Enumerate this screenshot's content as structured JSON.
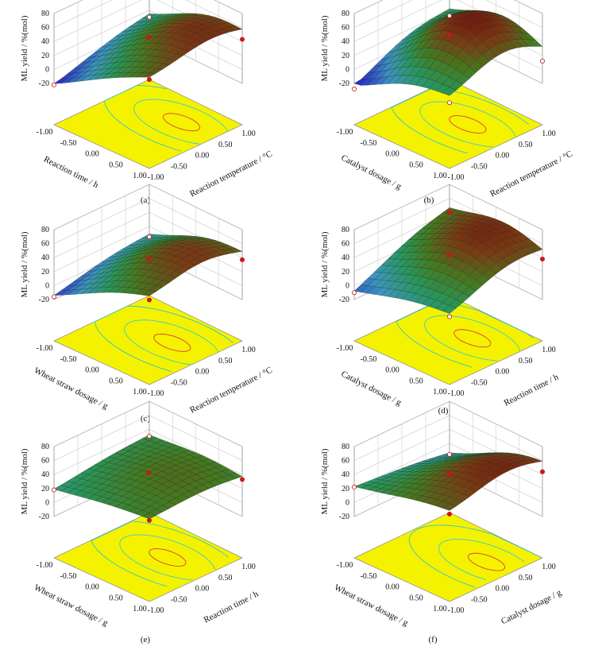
{
  "figure": {
    "panels": [
      {
        "id": "a",
        "caption": "(a)",
        "x_label": "Reaction temperature / °C",
        "y_label": "Reaction time / h",
        "z_label": "ML yield / %(mol)",
        "z_ticks": [
          "-20",
          "0",
          "20",
          "40",
          "60",
          "80"
        ],
        "x_ticks": [
          "-1.00",
          "-0.50",
          "0.00",
          "0.50",
          "1.00"
        ],
        "y_ticks": [
          "-1.00",
          "-0.50",
          "0.00",
          "0.50",
          "1.00"
        ]
      },
      {
        "id": "b",
        "caption": "(b)",
        "x_label": "Reaction temperature / °C",
        "y_label": "Catalyst dosage / g",
        "z_label": "ML yield / %(mol)",
        "z_ticks": [
          "-20",
          "0",
          "20",
          "40",
          "60",
          "80"
        ],
        "x_ticks": [
          "-1.00",
          "-0.50",
          "0.00",
          "0.50",
          "1.00"
        ],
        "y_ticks": [
          "-1.00",
          "-0.50",
          "0.00",
          "0.50",
          "1.00"
        ]
      },
      {
        "id": "c",
        "caption": "(c)",
        "x_label": "Reaction temperature / °C",
        "y_label": "Wheat straw dosage / g",
        "z_label": "ML yield / %(mol)",
        "z_ticks": [
          "-20",
          "0",
          "20",
          "40",
          "60",
          "80"
        ],
        "x_ticks": [
          "-1.00",
          "-0.50",
          "0.00",
          "0.50",
          "1.00"
        ],
        "y_ticks": [
          "-1.00",
          "-0.50",
          "0.00",
          "0.50",
          "1.00"
        ]
      },
      {
        "id": "d",
        "caption": "(d)",
        "x_label": "Reaction time / h",
        "y_label": "Catalyst dosage / g",
        "z_label": "ML yield / %(mol)",
        "z_ticks": [
          "-20",
          "0",
          "20",
          "40",
          "60",
          "80"
        ],
        "x_ticks": [
          "-1.00",
          "-0.50",
          "0.00",
          "0.50",
          "1.00"
        ],
        "y_ticks": [
          "-1.00",
          "-0.50",
          "0.00",
          "0.50",
          "1.00"
        ]
      },
      {
        "id": "e",
        "caption": "(e)",
        "x_label": "Reaction time / h",
        "y_label": "Wheat straw dosage / g",
        "z_label": "ML yield / %(mol)",
        "z_ticks": [
          "-20",
          "0",
          "20",
          "40",
          "60",
          "80"
        ],
        "x_ticks": [
          "-1.00",
          "-0.50",
          "0.00",
          "0.50",
          "1.00"
        ],
        "y_ticks": [
          "-1.00",
          "-0.50",
          "0.00",
          "0.50",
          "1.00"
        ]
      },
      {
        "id": "f",
        "caption": "(f)",
        "x_label": "Catalyst dosage / g",
        "y_label": "Wheat straw dosage / g",
        "z_label": "ML yield / %(mol)",
        "z_ticks": [
          "-20",
          "0",
          "20",
          "40",
          "60",
          "80"
        ],
        "x_ticks": [
          "-1.00",
          "-0.50",
          "0.00",
          "0.50",
          "1.00"
        ],
        "y_ticks": [
          "-1.00",
          "-0.50",
          "0.00",
          "0.50",
          "1.00"
        ]
      }
    ]
  },
  "chart_data": [
    {
      "panel": "a",
      "type": "surface",
      "zlim": [
        -20,
        80
      ],
      "xlim": [
        -1,
        1
      ],
      "ylim": [
        -1,
        1
      ],
      "x": [
        -1,
        1
      ],
      "y": [
        -1,
        1
      ],
      "z": [
        [
          -22,
          48
        ],
        [
          10,
          43
        ]
      ],
      "peak": {
        "x": 0.3,
        "y": 0.4,
        "z": 53
      },
      "center_point": 45,
      "contour_color_map": "blue-green-red"
    },
    {
      "panel": "b",
      "type": "surface",
      "zlim": [
        -20,
        80
      ],
      "xlim": [
        -1,
        1
      ],
      "ylim": [
        -1,
        1
      ],
      "x": [
        -1,
        1
      ],
      "y": [
        -1,
        1
      ],
      "z": [
        [
          -28,
          15
        ],
        [
          12,
          12
        ]
      ],
      "peak": {
        "x": 0.2,
        "y": 0.2,
        "z": 73
      },
      "center_point": 48,
      "contour_color_map": "blue-green-red"
    },
    {
      "panel": "c",
      "type": "surface",
      "zlim": [
        -20,
        80
      ],
      "xlim": [
        -1,
        1
      ],
      "ylim": [
        -1,
        1
      ],
      "x": [
        -1,
        1
      ],
      "y": [
        -1,
        1
      ],
      "z": [
        [
          -16,
          42
        ],
        [
          5,
          37
        ]
      ],
      "peak": {
        "x": 0.3,
        "y": 0.2,
        "z": 52
      },
      "center_point": 38,
      "contour_color_map": "blue-green-red"
    },
    {
      "panel": "d",
      "type": "surface",
      "zlim": [
        -20,
        80
      ],
      "xlim": [
        -1,
        1
      ],
      "ylim": [
        -1,
        1
      ],
      "x": [
        -1,
        1
      ],
      "y": [
        -1,
        1
      ],
      "z": [
        [
          -10,
          18
        ],
        [
          40,
          38
        ]
      ],
      "peak": {
        "x": 0.2,
        "y": 0.3,
        "z": 62
      },
      "center_point": 43,
      "contour_color_map": "blue-green-red"
    },
    {
      "panel": "e",
      "type": "surface",
      "zlim": [
        -20,
        80
      ],
      "xlim": [
        -1,
        1
      ],
      "ylim": [
        -1,
        1
      ],
      "x": [
        -1,
        1
      ],
      "y": [
        -1,
        1
      ],
      "z": [
        [
          18,
          37
        ],
        [
          30,
          33
        ]
      ],
      "peak": {
        "x": 0.2,
        "y": 0.2,
        "z": 44
      },
      "center_point": 42,
      "contour_color_map": "blue-green-red"
    },
    {
      "panel": "f",
      "type": "surface",
      "zlim": [
        -20,
        80
      ],
      "xlim": [
        -1,
        1
      ],
      "ylim": [
        -1,
        1
      ],
      "x": [
        -1,
        1
      ],
      "y": [
        -1,
        1
      ],
      "z": [
        [
          22,
          46
        ],
        [
          4,
          44
        ]
      ],
      "peak": {
        "x": 0.5,
        "y": 0.3,
        "z": 60
      },
      "center_point": 40,
      "contour_color_map": "blue-green-red"
    }
  ]
}
